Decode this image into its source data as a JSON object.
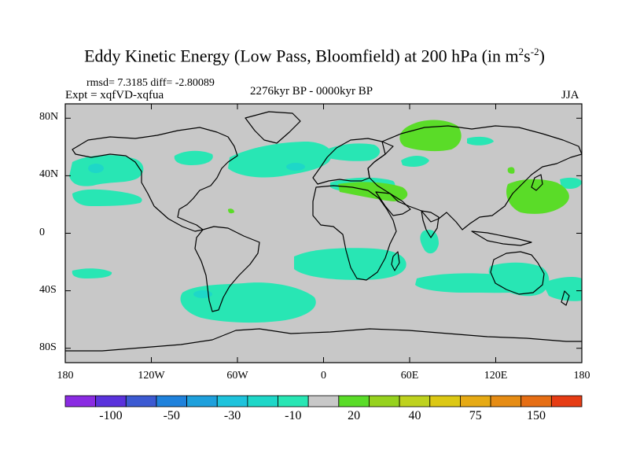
{
  "title": {
    "main": "Eddy Kinetic Energy (Low Pass, Bloomfield) at 200 hPa (in m",
    "exp1": "2",
    "mid": "s",
    "exp2": "-2",
    "close": ")"
  },
  "stats": "rmsd= 7.3185 diff= -2.80089",
  "experiment": "Expt = xqfVD-xqfua",
  "period": "2276kyr BP - 0000kyr BP",
  "season": "JJA",
  "map": {
    "projection": "equirectangular",
    "lon_range": [
      -180,
      180
    ],
    "lat_range": [
      -90,
      90
    ],
    "background_color": "#c8c8c8",
    "y_ticks": [
      {
        "lat": 80,
        "label": "80N"
      },
      {
        "lat": 40,
        "label": "40N"
      },
      {
        "lat": 0,
        "label": "0"
      },
      {
        "lat": -40,
        "label": "40S"
      },
      {
        "lat": -80,
        "label": "80S"
      }
    ],
    "x_ticks": [
      {
        "lon": -180,
        "label": "180"
      },
      {
        "lon": -120,
        "label": "120W"
      },
      {
        "lon": -60,
        "label": "60W"
      },
      {
        "lon": 0,
        "label": "0"
      },
      {
        "lon": 60,
        "label": "60E"
      },
      {
        "lon": 120,
        "label": "120E"
      },
      {
        "lon": 180,
        "label": "180"
      }
    ]
  },
  "colorbar": {
    "colors": [
      "#8a2be2",
      "#5a32dc",
      "#3c5ad2",
      "#1f82dc",
      "#1ea0dc",
      "#1ec3dc",
      "#1ed7c8",
      "#28e6b4",
      "#c8c8c8",
      "#5adc28",
      "#96d21e",
      "#bed21e",
      "#dcc814",
      "#e6aa14",
      "#e68c14",
      "#e66e14",
      "#e63c14"
    ],
    "labels": [
      {
        "index": 1.5,
        "text": "-100"
      },
      {
        "index": 3.5,
        "text": "-50"
      },
      {
        "index": 5.5,
        "text": "-30"
      },
      {
        "index": 7.5,
        "text": "-10"
      },
      {
        "index": 9.5,
        "text": "20"
      },
      {
        "index": 11.5,
        "text": "40"
      },
      {
        "index": 13.5,
        "text": "75"
      },
      {
        "index": 15.5,
        "text": "150"
      }
    ]
  }
}
